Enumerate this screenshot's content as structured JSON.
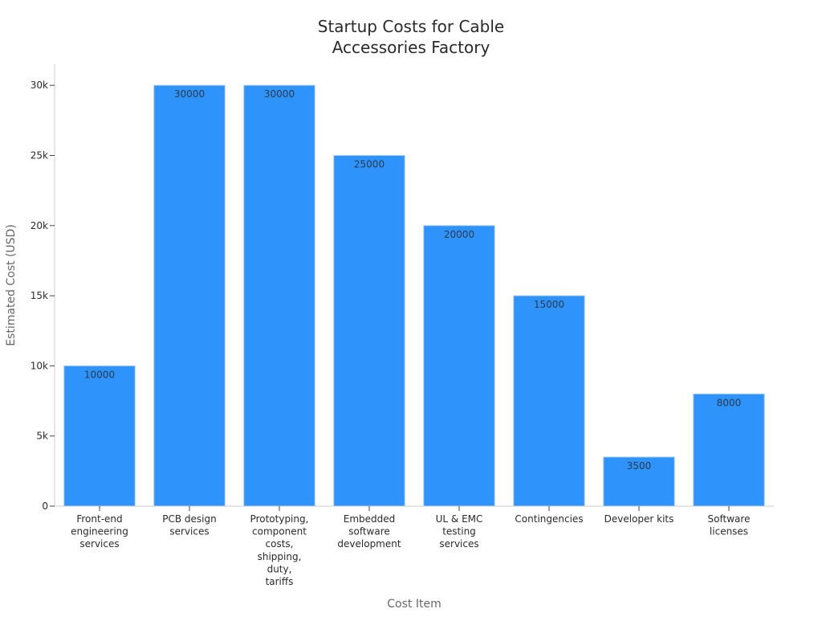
{
  "chart_data": {
    "type": "bar",
    "title_lines": [
      "Startup Costs for Cable",
      "Accessories Factory"
    ],
    "xlabel": "Cost Item",
    "ylabel": "Estimated Cost (USD)",
    "categories": [
      [
        "Front-end",
        "engineering",
        "services"
      ],
      [
        "PCB design",
        "services"
      ],
      [
        "Prototyping,",
        "component",
        "costs,",
        "shipping,",
        "duty,",
        "tariffs"
      ],
      [
        "Embedded",
        "software",
        "development"
      ],
      [
        "UL & EMC",
        "testing",
        "services"
      ],
      [
        "Contingencies"
      ],
      [
        "Developer kits"
      ],
      [
        "Software",
        "licenses"
      ]
    ],
    "values": [
      10000,
      30000,
      30000,
      25000,
      20000,
      15000,
      3500,
      8000
    ],
    "data_labels": [
      "10000",
      "30000",
      "30000",
      "25000",
      "20000",
      "15000",
      "3500",
      "8000"
    ],
    "yticks": [
      0,
      5000,
      10000,
      15000,
      20000,
      25000,
      30000
    ],
    "ytick_labels": [
      "0",
      "5k",
      "10k",
      "15k",
      "20k",
      "25k",
      "30k"
    ],
    "ylim": [
      0,
      31500
    ],
    "grid": false,
    "legend": "none",
    "colors": {
      "bar": "#2e93fa",
      "bar_edge": "#a9cdf4",
      "axis": "#cccccc",
      "text": "#2a2a2a",
      "label": "#555555"
    }
  }
}
